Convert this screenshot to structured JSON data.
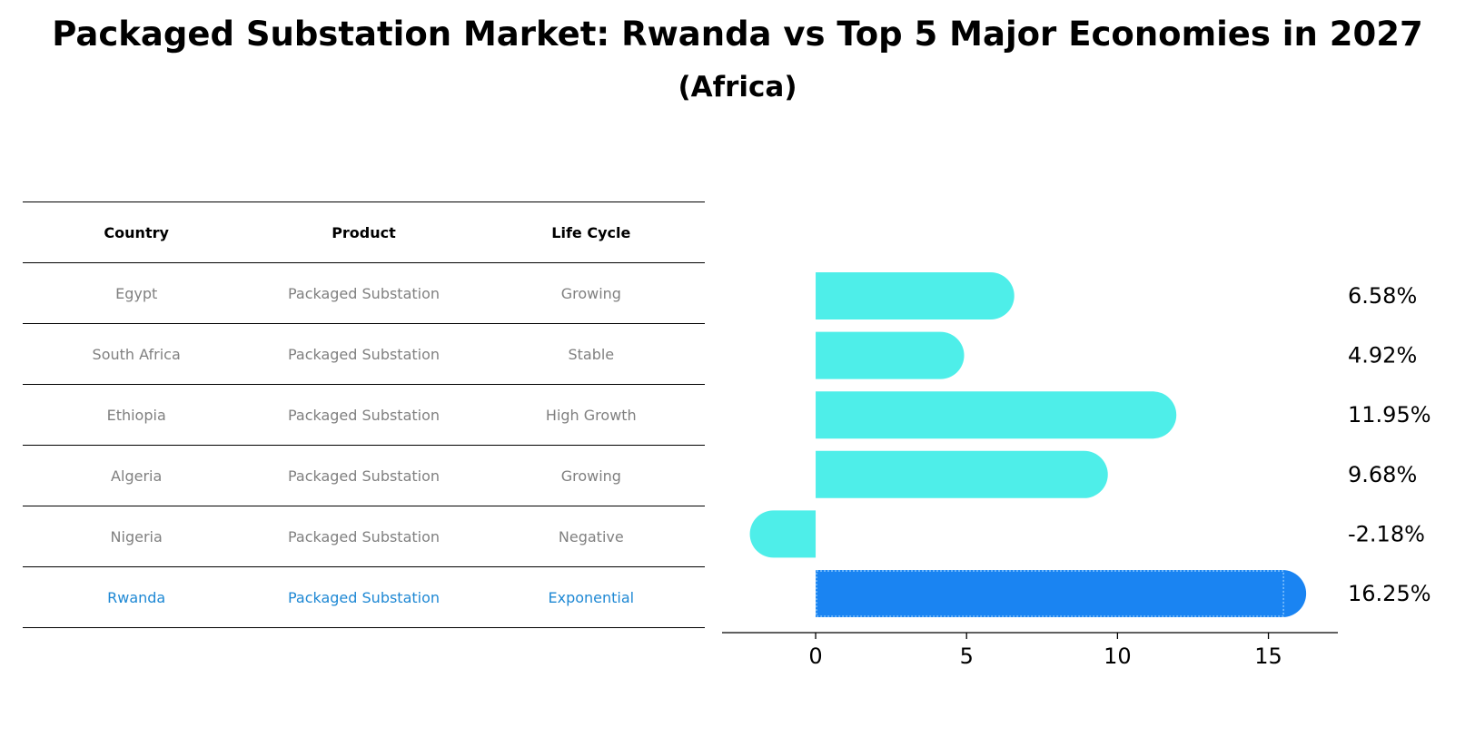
{
  "title": "Packaged Substation Market: Rwanda vs Top 5 Major Economies in 2027",
  "subtitle": "(Africa)",
  "table": {
    "headers": [
      "Country",
      "Product",
      "Life Cycle"
    ],
    "rows": [
      {
        "country": "Egypt",
        "product": "Packaged Substation",
        "life_cycle": "Growing"
      },
      {
        "country": "South Africa",
        "product": "Packaged Substation",
        "life_cycle": "Stable"
      },
      {
        "country": "Ethiopia",
        "product": "Packaged Substation",
        "life_cycle": "High Growth"
      },
      {
        "country": "Algeria",
        "product": "Packaged Substation",
        "life_cycle": "Growing"
      },
      {
        "country": "Nigeria",
        "product": "Packaged Substation",
        "life_cycle": "Negative"
      },
      {
        "country": "Rwanda",
        "product": "Packaged Substation",
        "life_cycle": "Exponential"
      }
    ]
  },
  "chart_data": {
    "type": "bar",
    "orientation": "horizontal",
    "categories": [
      "Egypt",
      "South Africa",
      "Ethiopia",
      "Algeria",
      "Nigeria",
      "Rwanda"
    ],
    "values": [
      6.58,
      4.92,
      11.95,
      9.68,
      -2.18,
      16.25
    ],
    "value_labels": [
      "6.58%",
      "4.92%",
      "11.95%",
      "9.68%",
      "-2.18%",
      "16.25%"
    ],
    "xlim": [
      -3.1,
      17.3
    ],
    "xticks": [
      0,
      5,
      10,
      15
    ],
    "highlight_index": 5,
    "colors": {
      "default": "#4eeee9",
      "highlight": "#1a84f2"
    }
  }
}
